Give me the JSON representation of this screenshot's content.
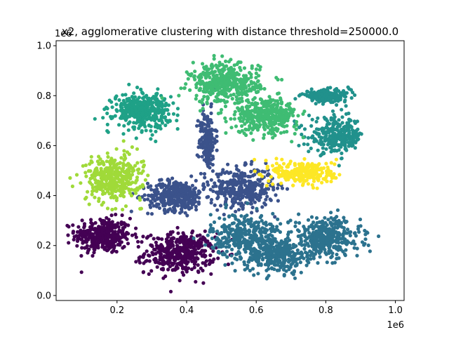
{
  "chart_data": {
    "type": "scatter",
    "title": "x2, agglomerative clustering with distance threshold=250000.0",
    "xlabel": "",
    "ylabel": "",
    "x_offset_label": "1e6",
    "y_offset_label": "1e6",
    "xlim": [
      0.025,
      1.025
    ],
    "ylim": [
      -0.02,
      1.02
    ],
    "x_ticks": [
      0.2,
      0.4,
      0.6,
      0.8,
      1.0
    ],
    "x_tick_labels": [
      "0.2",
      "0.4",
      "0.6",
      "0.8",
      "1.0"
    ],
    "y_ticks": [
      0.0,
      0.2,
      0.4,
      0.6,
      0.8,
      1.0
    ],
    "y_tick_labels": [
      "0.0",
      "0.2",
      "0.4",
      "0.6",
      "0.8",
      "1.0"
    ],
    "grid": false,
    "legend": "none",
    "units_note": "axis values in units of 1e6",
    "clusters": [
      {
        "color": "#440154",
        "center": [
          0.16,
          0.24
        ],
        "spread": [
          0.04,
          0.035
        ],
        "n": 350
      },
      {
        "color": "#440154",
        "center": [
          0.38,
          0.17
        ],
        "spread": [
          0.05,
          0.04
        ],
        "n": 420
      },
      {
        "color": "#3b528b",
        "center": [
          0.46,
          0.62
        ],
        "spread": [
          0.012,
          0.06
        ],
        "n": 180
      },
      {
        "color": "#3b528b",
        "center": [
          0.37,
          0.4
        ],
        "spread": [
          0.04,
          0.03
        ],
        "n": 380
      },
      {
        "color": "#3b528b",
        "center": [
          0.56,
          0.43
        ],
        "spread": [
          0.045,
          0.04
        ],
        "n": 360
      },
      {
        "color": "#2c728e",
        "center": [
          0.57,
          0.24
        ],
        "spread": [
          0.05,
          0.045
        ],
        "n": 350
      },
      {
        "color": "#2c728e",
        "center": [
          0.66,
          0.16
        ],
        "spread": [
          0.045,
          0.035
        ],
        "n": 300
      },
      {
        "color": "#2c728e",
        "center": [
          0.8,
          0.23
        ],
        "spread": [
          0.05,
          0.04
        ],
        "n": 380
      },
      {
        "color": "#21918c",
        "center": [
          0.8,
          0.8
        ],
        "spread": [
          0.035,
          0.012
        ],
        "n": 200
      },
      {
        "color": "#21918c",
        "center": [
          0.83,
          0.64
        ],
        "spread": [
          0.04,
          0.035
        ],
        "n": 280
      },
      {
        "color": "#1fa187",
        "center": [
          0.27,
          0.74
        ],
        "spread": [
          0.04,
          0.035
        ],
        "n": 380
      },
      {
        "color": "#3fbc73",
        "center": [
          0.51,
          0.85
        ],
        "spread": [
          0.05,
          0.04
        ],
        "n": 420
      },
      {
        "color": "#3fbc73",
        "center": [
          0.63,
          0.72
        ],
        "spread": [
          0.045,
          0.035
        ],
        "n": 380
      },
      {
        "color": "#a0da39",
        "center": [
          0.19,
          0.47
        ],
        "spread": [
          0.04,
          0.045
        ],
        "n": 380
      },
      {
        "color": "#fde725",
        "center": [
          0.74,
          0.49
        ],
        "spread": [
          0.045,
          0.025
        ],
        "n": 260
      }
    ]
  }
}
